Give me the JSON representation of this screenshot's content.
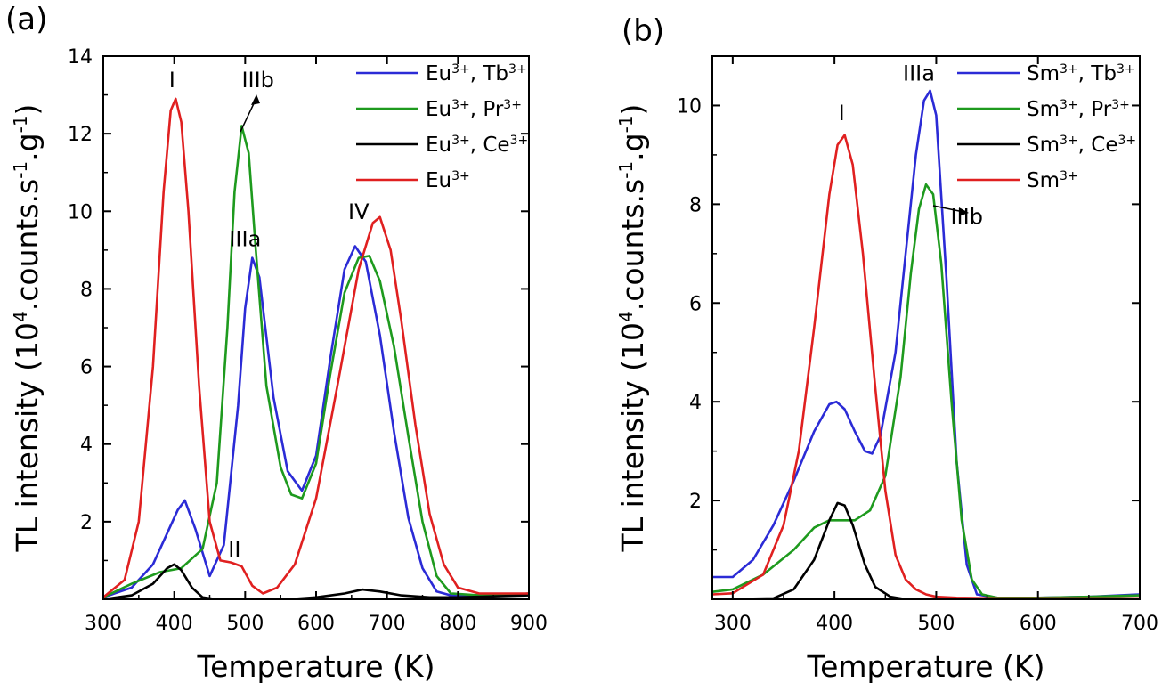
{
  "chart_data": [
    {
      "type": "line",
      "panel_label": "(a)",
      "xlabel": "Temperature (K)",
      "ylabel": "TL intensity (10^4.counts.s^-1.g^-1)",
      "xlim": [
        300,
        900
      ],
      "ylim": [
        0,
        14
      ],
      "x_ticks": [
        "300",
        "400",
        "500",
        "600",
        "700",
        "800",
        "900"
      ],
      "y_ticks": [
        "2",
        "4",
        "6",
        "8",
        "10",
        "12",
        "14"
      ],
      "x_tick_values": [
        300,
        400,
        500,
        600,
        700,
        800,
        900
      ],
      "y_tick_values": [
        2,
        4,
        6,
        8,
        10,
        12,
        14
      ],
      "legend_position": "top-right",
      "series": [
        {
          "name": "Eu3+, Tb3+",
          "legend_main": [
            "Eu",
            ", Tb"
          ],
          "legend_sup": [
            "3+",
            "3+"
          ],
          "color": "#2b2bd6",
          "x": [
            300,
            340,
            370,
            390,
            405,
            415,
            430,
            450,
            470,
            490,
            500,
            510,
            520,
            540,
            560,
            580,
            600,
            620,
            640,
            655,
            670,
            690,
            710,
            730,
            750,
            770,
            790,
            830,
            860,
            900
          ],
          "y": [
            0.05,
            0.3,
            0.9,
            1.7,
            2.3,
            2.55,
            1.8,
            0.6,
            1.4,
            5.0,
            7.5,
            8.8,
            8.3,
            5.2,
            3.3,
            2.8,
            3.7,
            6.2,
            8.5,
            9.1,
            8.7,
            6.8,
            4.3,
            2.1,
            0.8,
            0.2,
            0.1,
            0.1,
            0.1,
            0.15
          ]
        },
        {
          "name": "Eu3+, Pr3+",
          "legend_main": [
            "Eu",
            ", Pr"
          ],
          "legend_sup": [
            "3+",
            "3+"
          ],
          "color": "#1e9a1e",
          "x": [
            300,
            340,
            380,
            410,
            440,
            460,
            475,
            485,
            495,
            505,
            515,
            530,
            550,
            565,
            580,
            600,
            620,
            640,
            660,
            675,
            690,
            710,
            730,
            750,
            770,
            790,
            830,
            860,
            900
          ],
          "y": [
            0.05,
            0.4,
            0.7,
            0.8,
            1.3,
            3.0,
            7.0,
            10.5,
            12.2,
            11.5,
            9.0,
            5.5,
            3.4,
            2.7,
            2.6,
            3.5,
            5.8,
            7.9,
            8.8,
            8.85,
            8.2,
            6.5,
            4.2,
            2.0,
            0.6,
            0.15,
            0.1,
            0.1,
            0.15
          ]
        },
        {
          "name": "Eu3+, Ce3+",
          "legend_main": [
            "Eu",
            ", Ce"
          ],
          "legend_sup": [
            "3+",
            "3+"
          ],
          "color": "#000000",
          "x": [
            300,
            340,
            370,
            390,
            400,
            410,
            425,
            440,
            460,
            500,
            560,
            600,
            640,
            665,
            690,
            720,
            760,
            800,
            900
          ],
          "y": [
            0.0,
            0.1,
            0.4,
            0.8,
            0.9,
            0.75,
            0.3,
            0.05,
            0.0,
            0.0,
            0.0,
            0.05,
            0.15,
            0.25,
            0.2,
            0.1,
            0.05,
            0.05,
            0.1
          ]
        },
        {
          "name": "Eu3+",
          "legend_main": [
            "Eu"
          ],
          "legend_sup": [
            "3+"
          ],
          "color": "#e02020",
          "x": [
            300,
            330,
            350,
            370,
            385,
            395,
            402,
            410,
            420,
            435,
            450,
            465,
            480,
            495,
            510,
            525,
            545,
            570,
            600,
            630,
            660,
            680,
            690,
            705,
            720,
            740,
            760,
            780,
            800,
            830,
            860,
            900
          ],
          "y": [
            0.05,
            0.5,
            2.0,
            6.0,
            10.5,
            12.6,
            12.9,
            12.3,
            10.0,
            5.5,
            2.0,
            1.0,
            0.95,
            0.85,
            0.35,
            0.15,
            0.3,
            0.9,
            2.6,
            5.5,
            8.5,
            9.7,
            9.85,
            9.0,
            7.2,
            4.5,
            2.2,
            0.9,
            0.3,
            0.15,
            0.15,
            0.15
          ]
        }
      ],
      "annotations": [
        {
          "text": "I",
          "x": 397,
          "y": 13.2
        },
        {
          "text": "IIIb",
          "x": 518,
          "y": 13.2
        },
        {
          "text": "IIIa",
          "x": 500,
          "y": 9.1
        },
        {
          "text": "IV",
          "x": 660,
          "y": 9.8
        },
        {
          "text": "II",
          "x": 485,
          "y": 1.1
        }
      ]
    },
    {
      "type": "line",
      "panel_label": "(b)",
      "xlabel": "Temperature (K)",
      "ylabel": "TL intensity (10^4.counts.s^-1.g^-1)",
      "xlim": [
        280,
        700
      ],
      "ylim": [
        0,
        11
      ],
      "x_ticks": [
        "300",
        "400",
        "500",
        "600",
        "700"
      ],
      "y_ticks": [
        "2",
        "4",
        "6",
        "8",
        "10"
      ],
      "x_tick_values": [
        300,
        400,
        500,
        600,
        700
      ],
      "y_tick_values": [
        2,
        4,
        6,
        8,
        10
      ],
      "legend_position": "top-right",
      "series": [
        {
          "name": "Sm3+, Tb3+",
          "legend_main": [
            "Sm",
            ", Tb"
          ],
          "legend_sup": [
            "3+",
            "3+"
          ],
          "color": "#2b2bd6",
          "x": [
            280,
            300,
            320,
            340,
            360,
            380,
            395,
            402,
            410,
            420,
            430,
            437,
            445,
            460,
            470,
            480,
            488,
            494,
            500,
            510,
            520,
            530,
            540,
            560,
            600,
            650,
            700
          ],
          "y": [
            0.45,
            0.45,
            0.8,
            1.5,
            2.4,
            3.4,
            3.95,
            4.0,
            3.85,
            3.4,
            3.0,
            2.95,
            3.3,
            5.0,
            7.0,
            9.0,
            10.1,
            10.3,
            9.8,
            6.5,
            2.8,
            0.7,
            0.1,
            0.03,
            0.03,
            0.05,
            0.1
          ]
        },
        {
          "name": "Sm3+, Pr3+",
          "legend_main": [
            "Sm",
            ", Pr"
          ],
          "legend_sup": [
            "3+",
            "3+"
          ],
          "color": "#1e9a1e",
          "x": [
            280,
            300,
            330,
            360,
            380,
            395,
            405,
            420,
            435,
            450,
            465,
            475,
            483,
            490,
            497,
            505,
            515,
            525,
            535,
            545,
            560,
            600,
            650,
            700
          ],
          "y": [
            0.15,
            0.2,
            0.5,
            1.0,
            1.45,
            1.6,
            1.6,
            1.6,
            1.8,
            2.5,
            4.5,
            6.6,
            7.9,
            8.4,
            8.2,
            6.8,
            4.0,
            1.6,
            0.4,
            0.1,
            0.03,
            0.03,
            0.05,
            0.08
          ]
        },
        {
          "name": "Sm3+, Ce3+",
          "legend_main": [
            "Sm",
            ", Ce"
          ],
          "legend_sup": [
            "3+",
            "3+"
          ],
          "color": "#000000",
          "x": [
            280,
            340,
            360,
            380,
            395,
            403,
            410,
            418,
            430,
            440,
            455,
            470,
            500,
            600,
            700
          ],
          "y": [
            0.0,
            0.02,
            0.2,
            0.8,
            1.6,
            1.95,
            1.9,
            1.5,
            0.7,
            0.25,
            0.05,
            0.0,
            0.0,
            0.0,
            0.0
          ]
        },
        {
          "name": "Sm3+",
          "legend_main": [
            "Sm"
          ],
          "legend_sup": [
            "3+"
          ],
          "color": "#e02020",
          "x": [
            280,
            300,
            330,
            350,
            365,
            380,
            395,
            403,
            410,
            418,
            428,
            440,
            450,
            460,
            470,
            480,
            490,
            500,
            520,
            560,
            600,
            700
          ],
          "y": [
            0.1,
            0.12,
            0.5,
            1.5,
            3.0,
            5.5,
            8.2,
            9.2,
            9.4,
            8.8,
            7.0,
            4.3,
            2.2,
            0.9,
            0.4,
            0.2,
            0.1,
            0.05,
            0.03,
            0.02,
            0.02,
            0.02
          ]
        }
      ],
      "annotations": [
        {
          "text": "I",
          "x": 407,
          "y": 9.7
        },
        {
          "text": "IIIa",
          "x": 483,
          "y": 10.5
        },
        {
          "text": "IIIb",
          "x": 530,
          "y": 7.6
        }
      ]
    }
  ]
}
